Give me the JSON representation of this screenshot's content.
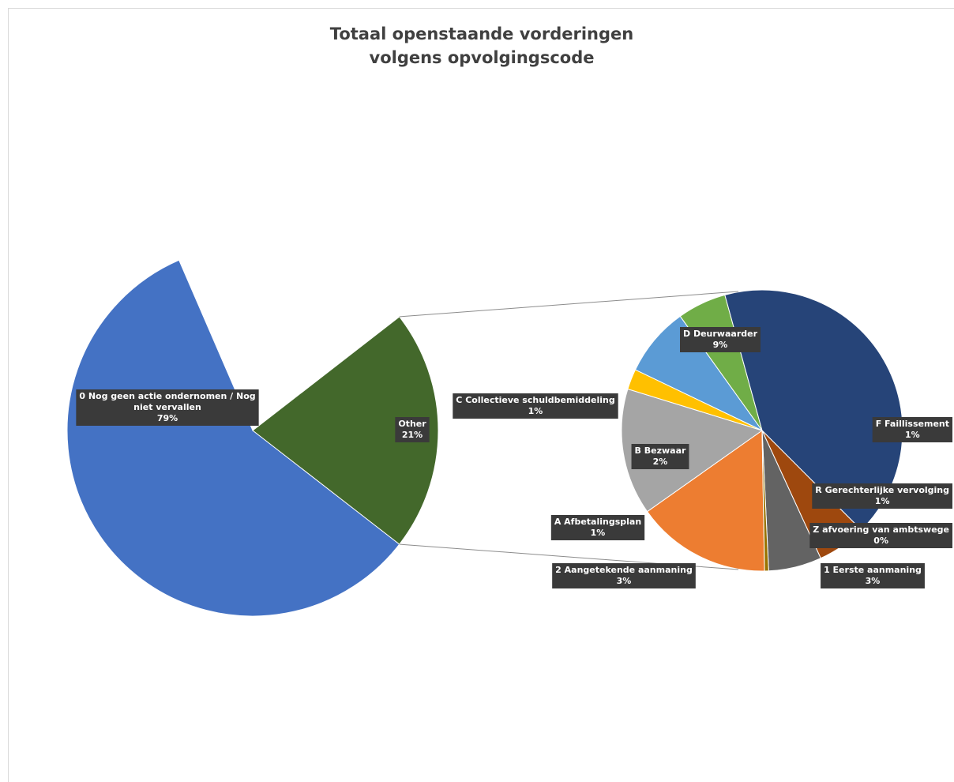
{
  "chart_data": {
    "type": "pie",
    "subtype": "pie-of-pie",
    "title_lines": [
      "Totaal openstaande vorderingen",
      "volgens opvolgingscode"
    ],
    "primary_pie": [
      {
        "label_lines": [
          "0 Nog geen actie ondernomen / Nog",
          "niet vervallen"
        ],
        "percent_label": "79%",
        "value": 79,
        "color": "#4472c4"
      },
      {
        "label_lines": [
          "Other"
        ],
        "percent_label": "21%",
        "value": 21,
        "color": "#43682b"
      }
    ],
    "secondary_pie": [
      {
        "label_lines": [
          "1 Eerste aanmaning"
        ],
        "percent_label": "3%",
        "value": 3.3,
        "color": "#ed7d31"
      },
      {
        "label_lines": [
          "2 Aangetekende aanmaning"
        ],
        "percent_label": "3%",
        "value": 3.1,
        "color": "#a5a5a5"
      },
      {
        "label_lines": [
          "A Afbetalingsplan"
        ],
        "percent_label": "1%",
        "value": 0.5,
        "color": "#ffc000"
      },
      {
        "label_lines": [
          "B Bezwaar"
        ],
        "percent_label": "2%",
        "value": 1.7,
        "color": "#5b9bd5"
      },
      {
        "label_lines": [
          "C Collectieve schuldbemiddeling"
        ],
        "percent_label": "1%",
        "value": 1.2,
        "color": "#70ad47"
      },
      {
        "label_lines": [
          "D Deurwaarder"
        ],
        "percent_label": "9%",
        "value": 8.9,
        "color": "#264478"
      },
      {
        "label_lines": [
          "F Faillissement"
        ],
        "percent_label": "1%",
        "value": 1.2,
        "color": "#9e480e"
      },
      {
        "label_lines": [
          "R Gerechterlijke vervolging"
        ],
        "percent_label": "1%",
        "value": 1.3,
        "color": "#636363"
      },
      {
        "label_lines": [
          "Z afvoering van ambtswege"
        ],
        "percent_label": "0%",
        "value": 0.1,
        "color": "#997300"
      }
    ],
    "connector_color": "#8c8c8c"
  }
}
